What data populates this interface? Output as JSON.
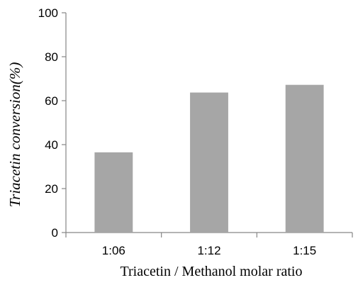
{
  "chart_data": {
    "type": "bar",
    "categories": [
      "1:06",
      "1:12",
      "1:15"
    ],
    "values": [
      36.5,
      63.7,
      67.2
    ],
    "title": "",
    "xlabel": "Triacetin / Methanol molar ratio",
    "ylabel": "Triacetin conversion(%)",
    "ylim": [
      0,
      100
    ],
    "yticks": [
      0,
      20,
      40,
      60,
      80,
      100
    ],
    "grid": false,
    "bar_color": "#a6a6a6",
    "axis_color": "#868686"
  }
}
